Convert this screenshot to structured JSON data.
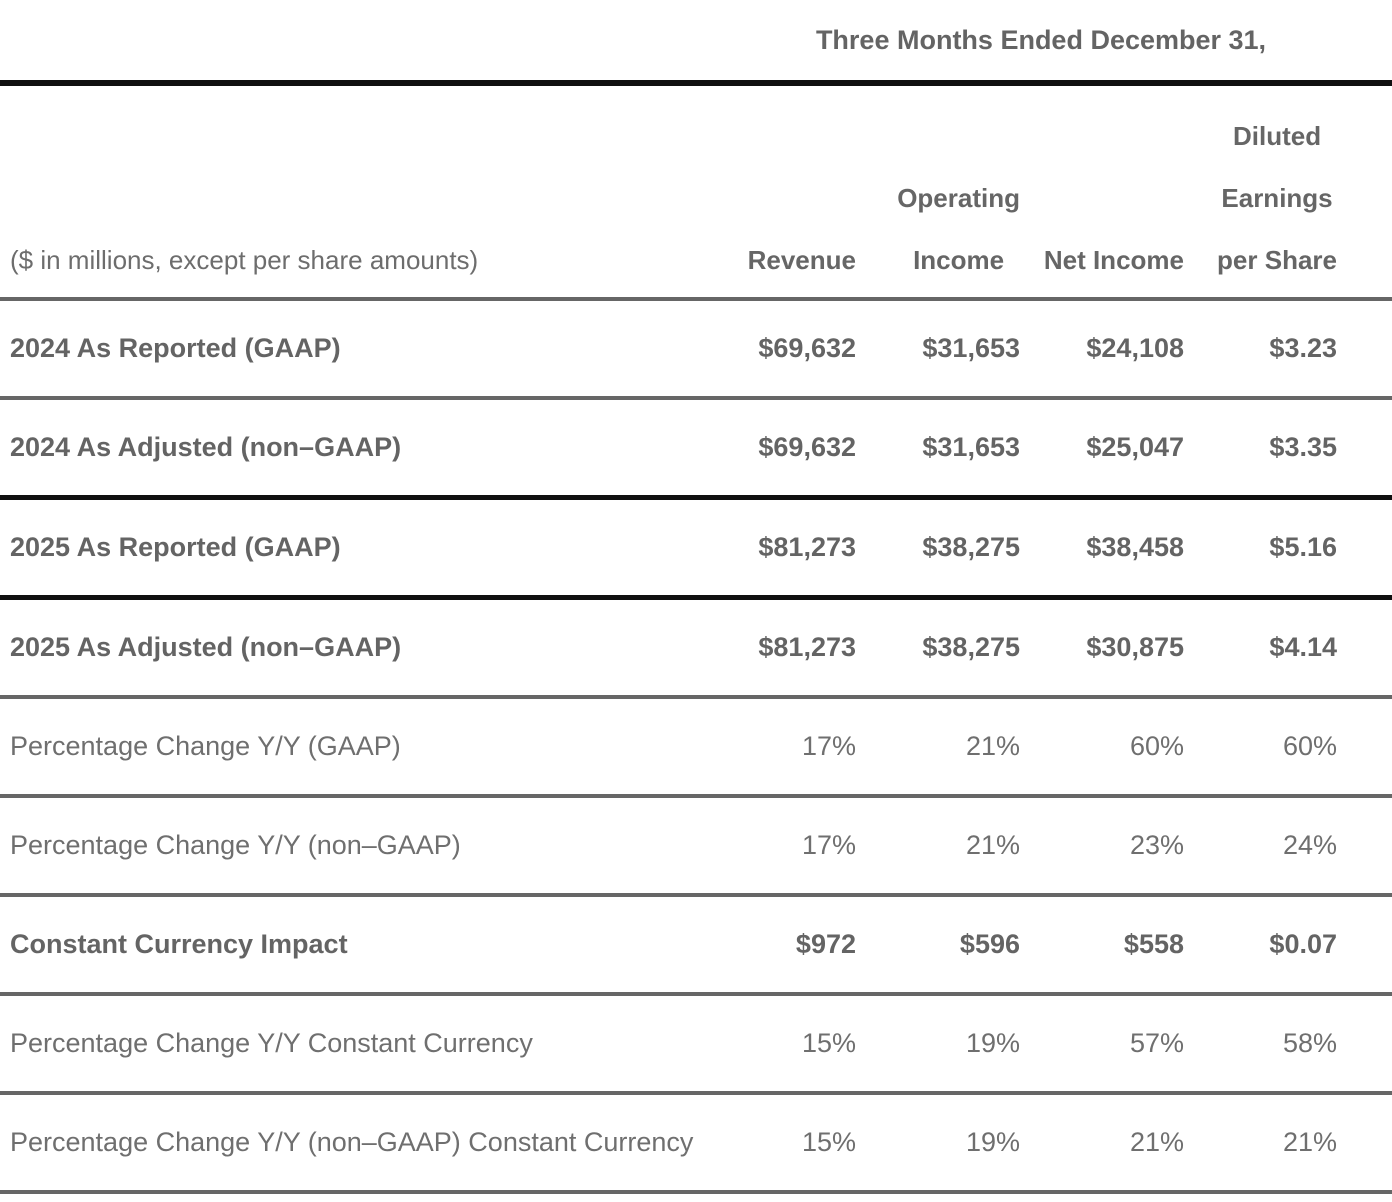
{
  "table": {
    "title": "Three Months Ended December 31,",
    "caption": "($ in millions, except per share amounts)",
    "columns": [
      {
        "lines": [
          "Revenue"
        ]
      },
      {
        "lines": [
          "Operating",
          "Income"
        ]
      },
      {
        "lines": [
          "Net Income"
        ]
      },
      {
        "lines": [
          "Diluted",
          "Earnings",
          "per Share"
        ]
      }
    ],
    "rows": [
      {
        "label": "2024 As Reported (GAAP)",
        "values": [
          "$69,632",
          "$31,653",
          "$24,108",
          "$3.23"
        ],
        "bold": true,
        "rule_below": "gray"
      },
      {
        "label": "2024 As Adjusted (non–GAAP)",
        "values": [
          "$69,632",
          "$31,653",
          "$25,047",
          "$3.35"
        ],
        "bold": true,
        "rule_below": "black"
      },
      {
        "label": "2025 As Reported (GAAP)",
        "values": [
          "$81,273",
          "$38,275",
          "$38,458",
          "$5.16"
        ],
        "bold": true,
        "rule_below": "black"
      },
      {
        "label": "2025 As Adjusted (non–GAAP)",
        "values": [
          "$81,273",
          "$38,275",
          "$30,875",
          "$4.14"
        ],
        "bold": true,
        "rule_below": "gray"
      },
      {
        "label": "Percentage Change Y/Y (GAAP)",
        "values": [
          "17%",
          "21%",
          "60%",
          "60%"
        ],
        "bold": false,
        "rule_below": "gray"
      },
      {
        "label": "Percentage Change Y/Y (non–GAAP)",
        "values": [
          "17%",
          "21%",
          "23%",
          "24%"
        ],
        "bold": false,
        "rule_below": "gray"
      },
      {
        "label": "Constant Currency Impact",
        "values": [
          "$972",
          "$596",
          "$558",
          "$0.07"
        ],
        "bold": true,
        "rule_below": "gray"
      },
      {
        "label": "Percentage Change Y/Y Constant Currency",
        "values": [
          "15%",
          "19%",
          "57%",
          "58%"
        ],
        "bold": false,
        "rule_below": "gray"
      },
      {
        "label": "Percentage Change Y/Y (non–GAAP) Constant Currency",
        "values": [
          "15%",
          "19%",
          "21%",
          "21%"
        ],
        "bold": false,
        "rule_below": "gray"
      }
    ]
  },
  "colors": {
    "background": "#ffffff",
    "text_bold": "#646464",
    "text_regular": "#6f6f6f",
    "rule_black": "#101010",
    "rule_gray": "#666666"
  }
}
